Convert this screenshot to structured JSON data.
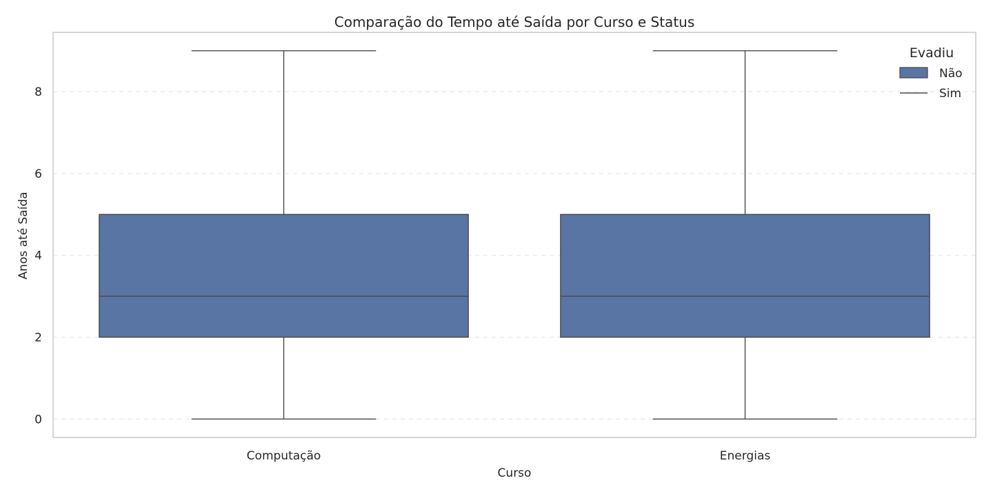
{
  "chart_data": {
    "type": "box",
    "title": "Comparação do Tempo até Saída por Curso e Status",
    "xlabel": "Curso",
    "ylabel": "Anos até Saída",
    "ylim": [
      -0.45,
      9.45
    ],
    "yticks": [
      0,
      2,
      4,
      6,
      8
    ],
    "grid": "horizontal dashed",
    "categories": [
      "Computação",
      "Energias"
    ],
    "legend": {
      "title": "Evadiu",
      "position": "top-right",
      "entries": [
        {
          "label": "Não",
          "marker": "patch",
          "color": "#5975a4"
        },
        {
          "label": "Sim",
          "marker": "line",
          "color": "#4a4a4a"
        }
      ]
    },
    "series": [
      {
        "name": "Não",
        "color": "#5975a4",
        "boxes": [
          {
            "category": "Computação",
            "min": 0,
            "q1": 2,
            "median": 3,
            "q3": 5,
            "max": 9
          },
          {
            "category": "Energias",
            "min": 0,
            "q1": 2,
            "median": 3,
            "q3": 5,
            "max": 9
          }
        ]
      }
    ]
  }
}
